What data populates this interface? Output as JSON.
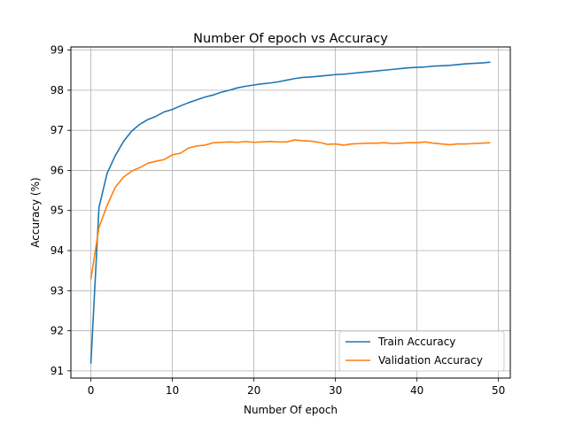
{
  "chart_data": {
    "type": "line",
    "title": "Number Of epoch vs Accuracy",
    "xlabel": "Number Of epoch",
    "ylabel": "Accuracy (%)",
    "xlim": [
      -2.45,
      51.45
    ],
    "ylim": [
      90.82,
      99.08
    ],
    "xticks": [
      0,
      10,
      20,
      30,
      40,
      50
    ],
    "yticks": [
      91,
      92,
      93,
      94,
      95,
      96,
      97,
      98,
      99
    ],
    "grid": true,
    "legend_position": "bottom-right",
    "x": [
      0,
      1,
      2,
      3,
      4,
      5,
      6,
      7,
      8,
      9,
      10,
      11,
      12,
      13,
      14,
      15,
      16,
      17,
      18,
      19,
      20,
      21,
      22,
      23,
      24,
      25,
      26,
      27,
      28,
      29,
      30,
      31,
      32,
      33,
      34,
      35,
      36,
      37,
      38,
      39,
      40,
      41,
      42,
      43,
      44,
      45,
      46,
      47,
      48,
      49
    ],
    "series": [
      {
        "name": "Train Accuracy",
        "color": "#1f77b4",
        "values": [
          91.18,
          95.08,
          95.93,
          96.37,
          96.72,
          96.98,
          97.15,
          97.27,
          97.35,
          97.46,
          97.52,
          97.61,
          97.69,
          97.76,
          97.83,
          97.88,
          97.95,
          98.0,
          98.06,
          98.1,
          98.13,
          98.16,
          98.18,
          98.21,
          98.25,
          98.29,
          98.32,
          98.33,
          98.35,
          98.37,
          98.39,
          98.4,
          98.42,
          98.44,
          98.46,
          98.48,
          98.5,
          98.52,
          98.54,
          98.56,
          98.57,
          98.58,
          98.6,
          98.61,
          98.62,
          98.64,
          98.66,
          98.67,
          98.68,
          98.7
        ]
      },
      {
        "name": "Validation Accuracy",
        "color": "#ff7f0e",
        "values": [
          93.28,
          94.58,
          95.13,
          95.58,
          95.83,
          95.98,
          96.07,
          96.18,
          96.23,
          96.27,
          96.39,
          96.43,
          96.56,
          96.61,
          96.63,
          96.69,
          96.7,
          96.71,
          96.7,
          96.72,
          96.7,
          96.71,
          96.72,
          96.71,
          96.71,
          96.76,
          96.74,
          96.73,
          96.7,
          96.65,
          96.66,
          96.63,
          96.66,
          96.67,
          96.68,
          96.68,
          96.69,
          96.67,
          96.68,
          96.69,
          96.69,
          96.71,
          96.68,
          96.66,
          96.64,
          96.66,
          96.66,
          96.67,
          96.68,
          96.69
        ]
      }
    ]
  }
}
